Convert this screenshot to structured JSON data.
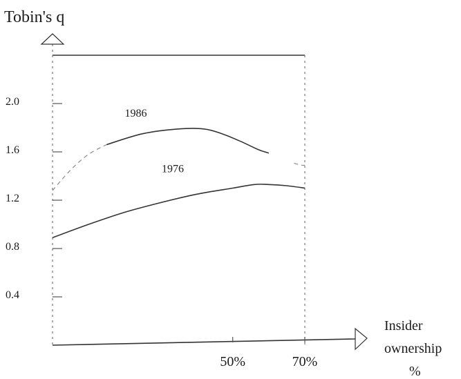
{
  "chart_data": {
    "type": "line",
    "ylabel": "Tobin's q",
    "xlabel": [
      "Insider",
      "ownership",
      "%"
    ],
    "y_ticks": [
      {
        "value": 0.4,
        "label": "0.4"
      },
      {
        "value": 0.8,
        "label": "0.8"
      },
      {
        "value": 1.2,
        "label": "1.2"
      },
      {
        "value": 1.6,
        "label": "1.6"
      },
      {
        "value": 2.0,
        "label": "2.0"
      }
    ],
    "x_ticks": [
      {
        "value": 50,
        "label": "50%"
      },
      {
        "value": 70,
        "label": "70%"
      }
    ],
    "xlim": [
      0,
      70
    ],
    "ylim": [
      0,
      2.4
    ],
    "grid": false,
    "series": [
      {
        "name": "1986",
        "points": [
          [
            0,
            1.28
          ],
          [
            5,
            1.45
          ],
          [
            10,
            1.58
          ],
          [
            15,
            1.66
          ],
          [
            25,
            1.75
          ],
          [
            35,
            1.79
          ],
          [
            42,
            1.79
          ],
          [
            47,
            1.75
          ],
          [
            52,
            1.69
          ],
          [
            57,
            1.62
          ],
          [
            62,
            1.57
          ],
          [
            64,
            1.53
          ],
          [
            69,
            1.49
          ]
        ],
        "visible_ranges": [
          [
            0,
            15
          ],
          [
            15,
            60
          ],
          [
            67,
            70
          ]
        ]
      },
      {
        "name": "1976",
        "points": [
          [
            0,
            0.89
          ],
          [
            10,
            1.0
          ],
          [
            20,
            1.1
          ],
          [
            30,
            1.18
          ],
          [
            40,
            1.25
          ],
          [
            50,
            1.3
          ],
          [
            56,
            1.33
          ],
          [
            60,
            1.33
          ],
          [
            65,
            1.32
          ],
          [
            70,
            1.3
          ]
        ],
        "visible_ranges": [
          [
            0,
            70
          ]
        ]
      }
    ]
  }
}
